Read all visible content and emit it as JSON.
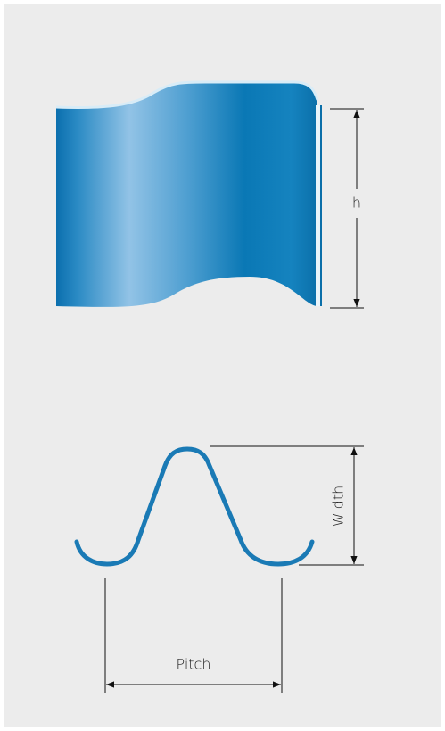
{
  "dimensions": {
    "height_label": "h",
    "width_label": "Width",
    "pitch_label": "Pitch"
  }
}
